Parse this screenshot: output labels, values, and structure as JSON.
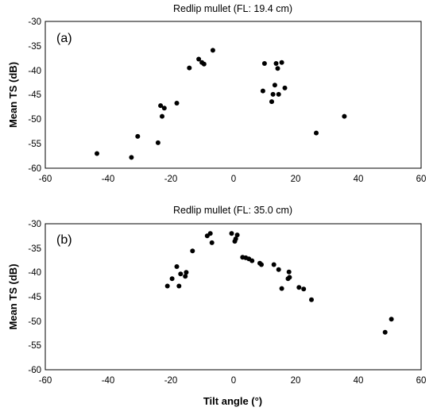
{
  "chart_data": [
    {
      "type": "scatter",
      "title": "Redlip mullet (FL: 19.4 cm)",
      "panel_label": "(a)",
      "xlabel": "",
      "ylabel": "Mean TS (dB)",
      "xlim": [
        -60,
        60
      ],
      "ylim": [
        -60,
        -30
      ],
      "xticks": [
        "-60",
        "-40",
        "-20",
        "0",
        "20",
        "40",
        "60"
      ],
      "yticks": [
        "-60",
        "-55",
        "-50",
        "-45",
        "-40",
        "-35",
        "-30"
      ],
      "grid": false,
      "marker_color": "#000000",
      "points": [
        {
          "x": -43.5,
          "y": -57.0
        },
        {
          "x": -32.5,
          "y": -57.8
        },
        {
          "x": -30.5,
          "y": -53.5
        },
        {
          "x": -24.0,
          "y": -54.8
        },
        {
          "x": -23.2,
          "y": -47.2
        },
        {
          "x": -22.7,
          "y": -49.4
        },
        {
          "x": -22.0,
          "y": -47.7
        },
        {
          "x": -18.0,
          "y": -46.7
        },
        {
          "x": -14.0,
          "y": -39.5
        },
        {
          "x": -11.0,
          "y": -37.7
        },
        {
          "x": -10.0,
          "y": -38.4
        },
        {
          "x": -9.3,
          "y": -38.7
        },
        {
          "x": -6.5,
          "y": -35.9
        },
        {
          "x": 9.5,
          "y": -44.2
        },
        {
          "x": 10.0,
          "y": -38.6
        },
        {
          "x": 12.3,
          "y": -46.4
        },
        {
          "x": 12.7,
          "y": -44.9
        },
        {
          "x": 13.3,
          "y": -43.0
        },
        {
          "x": 13.7,
          "y": -38.6
        },
        {
          "x": 14.2,
          "y": -39.6
        },
        {
          "x": 14.5,
          "y": -44.9
        },
        {
          "x": 15.5,
          "y": -38.4
        },
        {
          "x": 16.5,
          "y": -43.6
        },
        {
          "x": 26.5,
          "y": -52.8
        },
        {
          "x": 35.5,
          "y": -49.4
        }
      ]
    },
    {
      "type": "scatter",
      "title": "Redlip mullet (FL: 35.0 cm)",
      "panel_label": "(b)",
      "xlabel": "Tilt angle (°)",
      "ylabel": "Mean TS (dB)",
      "xlim": [
        -60,
        60
      ],
      "ylim": [
        -60,
        -30
      ],
      "xticks": [
        "-60",
        "-40",
        "-20",
        "0",
        "20",
        "40",
        "60"
      ],
      "yticks": [
        "-60",
        "-55",
        "-50",
        "-45",
        "-40",
        "-35",
        "-30"
      ],
      "grid": false,
      "marker_color": "#000000",
      "points": [
        {
          "x": -21.0,
          "y": -42.8
        },
        {
          "x": -19.5,
          "y": -41.3
        },
        {
          "x": -18.0,
          "y": -38.8
        },
        {
          "x": -17.3,
          "y": -42.8
        },
        {
          "x": -16.8,
          "y": -40.3
        },
        {
          "x": -15.3,
          "y": -40.8
        },
        {
          "x": -15.0,
          "y": -40.0
        },
        {
          "x": -13.0,
          "y": -35.6
        },
        {
          "x": -8.3,
          "y": -32.5
        },
        {
          "x": -7.3,
          "y": -32.0
        },
        {
          "x": -6.8,
          "y": -33.9
        },
        {
          "x": -0.5,
          "y": -32.0
        },
        {
          "x": 0.5,
          "y": -33.6
        },
        {
          "x": 0.8,
          "y": -33.1
        },
        {
          "x": 1.3,
          "y": -32.3
        },
        {
          "x": 3.0,
          "y": -36.9
        },
        {
          "x": 4.0,
          "y": -37.0
        },
        {
          "x": 5.0,
          "y": -37.2
        },
        {
          "x": 6.0,
          "y": -37.6
        },
        {
          "x": 8.5,
          "y": -38.1
        },
        {
          "x": 9.0,
          "y": -38.4
        },
        {
          "x": 13.0,
          "y": -38.4
        },
        {
          "x": 14.5,
          "y": -39.4
        },
        {
          "x": 15.5,
          "y": -43.3
        },
        {
          "x": 17.5,
          "y": -41.3
        },
        {
          "x": 17.8,
          "y": -39.9
        },
        {
          "x": 18.0,
          "y": -41.0
        },
        {
          "x": 21.0,
          "y": -43.1
        },
        {
          "x": 22.5,
          "y": -43.4
        },
        {
          "x": 25.0,
          "y": -45.6
        },
        {
          "x": 48.5,
          "y": -52.3
        },
        {
          "x": 50.5,
          "y": -49.6
        }
      ]
    }
  ]
}
